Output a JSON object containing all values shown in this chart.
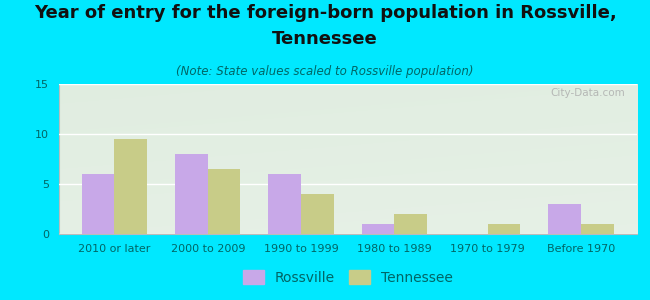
{
  "title_line1": "Year of entry for the foreign-born population in Rossville,",
  "title_line2": "Tennessee",
  "subtitle": "(Note: State values scaled to Rossville population)",
  "categories": [
    "2010 or later",
    "2000 to 2009",
    "1990 to 1999",
    "1980 to 1989",
    "1970 to 1979",
    "Before 1970"
  ],
  "rossville_values": [
    6,
    8,
    6,
    1,
    0,
    3
  ],
  "tennessee_values": [
    9.5,
    6.5,
    4,
    2,
    1,
    1
  ],
  "rossville_color": "#c8a8e8",
  "tennessee_color": "#c8cc88",
  "background_color": "#00e8ff",
  "ylim": [
    0,
    15
  ],
  "yticks": [
    0,
    5,
    10,
    15
  ],
  "bar_width": 0.35,
  "title_fontsize": 13,
  "subtitle_fontsize": 8.5,
  "tick_fontsize": 8,
  "legend_fontsize": 10,
  "watermark": "City-Data.com",
  "text_color": "#006666",
  "title_color": "#111111"
}
